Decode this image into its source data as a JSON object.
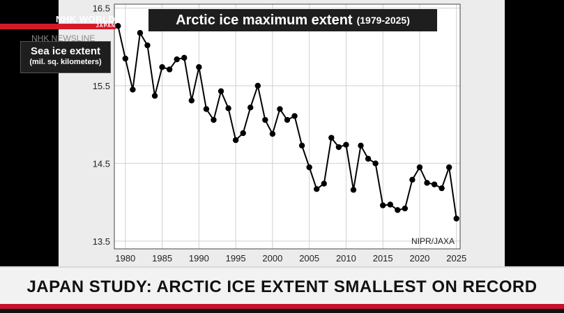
{
  "broadcaster": {
    "logo_text": "NHK WORLD",
    "logo_sub": "JAPAN",
    "ghost_text": "NHK NEWSLINE"
  },
  "title": {
    "main": "Arctic ice maximum extent",
    "sub": "(1979-2025)"
  },
  "ylabel": {
    "main": "Sea ice extent",
    "sub": "(mil. sq. kilometers)"
  },
  "source": "NIPR/JAXA",
  "ticker": {
    "text": "JAPAN STUDY: ARCTIC ICE EXTENT SMALLEST ON RECORD"
  },
  "chart_data": {
    "type": "line",
    "title": "Arctic ice maximum extent (1979-2025)",
    "xlabel": "",
    "ylabel": "Sea ice extent (mil. sq. kilometers)",
    "xlim": [
      1979,
      2025
    ],
    "ylim": [
      13.5,
      16.5
    ],
    "x_ticks": [
      1980,
      1985,
      1990,
      1995,
      2000,
      2005,
      2010,
      2015,
      2020,
      2025
    ],
    "y_ticks": [
      13.5,
      14.5,
      15.5,
      16.5
    ],
    "grid": true,
    "series": [
      {
        "x": [
          1979,
          1980,
          1981,
          1982,
          1983,
          1984,
          1985,
          1986,
          1987,
          1988,
          1989,
          1990,
          1991,
          1992,
          1993,
          1994,
          1995,
          1996,
          1997,
          1998,
          1999,
          2000,
          2001,
          2002,
          2003,
          2004,
          2005,
          2006,
          2007,
          2008,
          2009,
          2010,
          2011,
          2012,
          2013,
          2014,
          2015,
          2016,
          2017,
          2018,
          2019,
          2020,
          2021,
          2022,
          2023,
          2024,
          2025
        ],
        "values": [
          16.27,
          15.85,
          15.45,
          16.18,
          16.02,
          15.37,
          15.74,
          15.71,
          15.84,
          15.86,
          15.31,
          15.74,
          15.2,
          15.06,
          15.43,
          15.21,
          14.8,
          14.89,
          15.22,
          15.5,
          15.06,
          14.88,
          15.2,
          15.06,
          15.11,
          14.73,
          14.45,
          14.17,
          14.24,
          14.83,
          14.71,
          14.74,
          14.16,
          14.73,
          14.56,
          14.5,
          13.96,
          13.97,
          13.9,
          13.92,
          14.29,
          14.45,
          14.25,
          14.23,
          14.18,
          14.45,
          13.79
        ]
      }
    ]
  }
}
